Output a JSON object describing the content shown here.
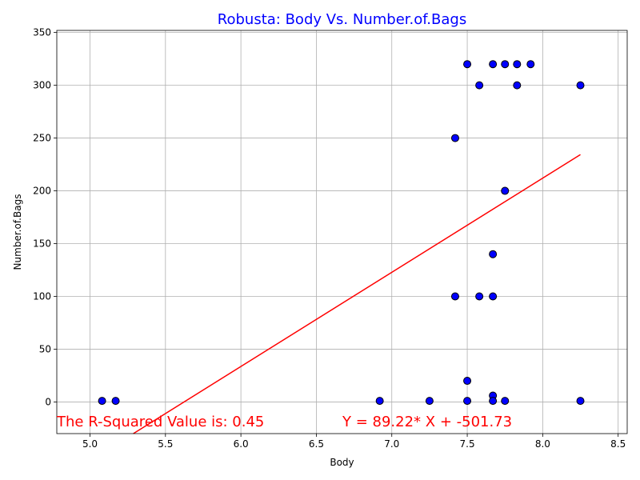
{
  "chart_data": {
    "type": "scatter",
    "title": "Robusta: Body Vs. Number.of.Bags",
    "xlabel": "Body",
    "ylabel": "Number.of.Bags",
    "xlim": [
      4.78,
      8.56
    ],
    "ylim": [
      -30,
      352
    ],
    "xticks": [
      5.0,
      5.5,
      6.0,
      6.5,
      7.0,
      7.5,
      8.0,
      8.5
    ],
    "xtick_labels": [
      "5.0",
      "5.5",
      "6.0",
      "6.5",
      "7.0",
      "7.5",
      "8.0",
      "8.5"
    ],
    "yticks": [
      0,
      50,
      100,
      150,
      200,
      250,
      300,
      350
    ],
    "ytick_labels": [
      "0",
      "50",
      "100",
      "150",
      "200",
      "250",
      "300",
      "350"
    ],
    "grid": true,
    "points": [
      {
        "x": 5.08,
        "y": 1
      },
      {
        "x": 5.17,
        "y": 1
      },
      {
        "x": 6.92,
        "y": 1
      },
      {
        "x": 7.25,
        "y": 1
      },
      {
        "x": 7.42,
        "y": 250
      },
      {
        "x": 7.42,
        "y": 100
      },
      {
        "x": 7.5,
        "y": 320
      },
      {
        "x": 7.5,
        "y": 20
      },
      {
        "x": 7.5,
        "y": 1
      },
      {
        "x": 7.58,
        "y": 300
      },
      {
        "x": 7.58,
        "y": 100
      },
      {
        "x": 7.67,
        "y": 320
      },
      {
        "x": 7.67,
        "y": 140
      },
      {
        "x": 7.67,
        "y": 100
      },
      {
        "x": 7.67,
        "y": 6
      },
      {
        "x": 7.67,
        "y": 1
      },
      {
        "x": 7.75,
        "y": 320
      },
      {
        "x": 7.75,
        "y": 200
      },
      {
        "x": 7.75,
        "y": 1
      },
      {
        "x": 7.83,
        "y": 320
      },
      {
        "x": 7.83,
        "y": 300
      },
      {
        "x": 7.92,
        "y": 320
      },
      {
        "x": 8.25,
        "y": 300
      },
      {
        "x": 8.25,
        "y": 1
      }
    ],
    "point_color": "#0000ff",
    "point_edge_color": "#000000",
    "fit_line": {
      "slope": 89.22,
      "intercept": -501.73,
      "x_range": [
        5.08,
        8.25
      ],
      "color": "#ff0000"
    },
    "annotations": {
      "r_squared": "The R-Squared Value is: 0.45",
      "equation": "Y = 89.22* X + -501.73"
    },
    "title_color": "#0000ff",
    "annotation_color": "#ff0000"
  }
}
